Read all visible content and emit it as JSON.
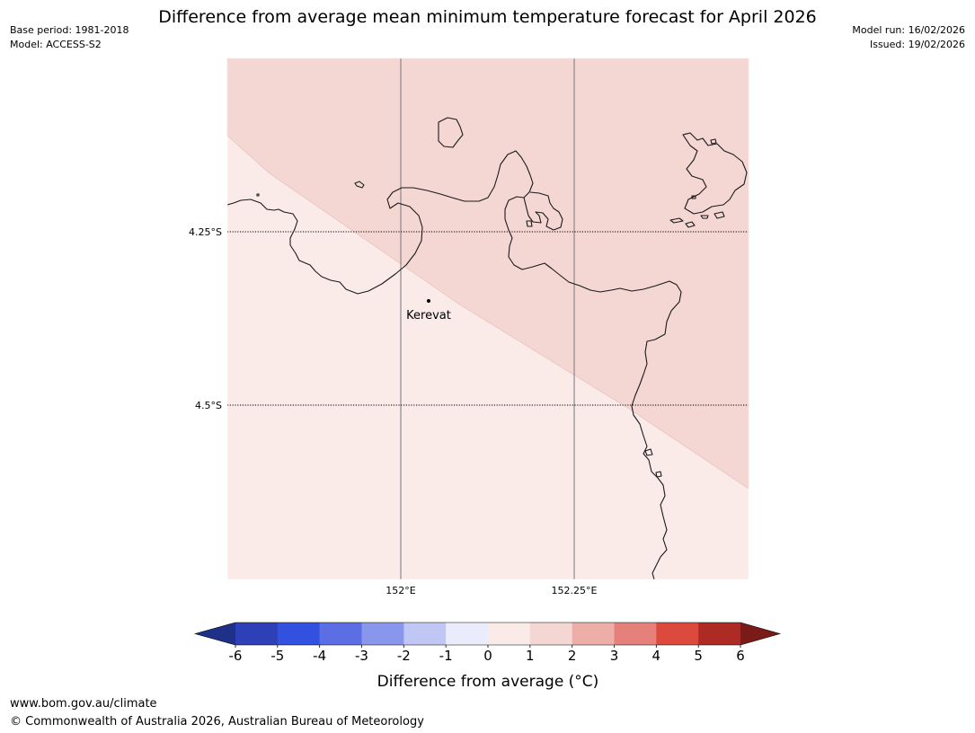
{
  "header": {
    "title": "Difference from average mean minimum temperature forecast for April 2026",
    "base_period": "Base period: 1981-2018",
    "model": "Model: ACCESS-S2",
    "model_run": "Model run: 16/02/2026",
    "issued": "Issued: 19/02/2026"
  },
  "map": {
    "latitude_labels": [
      "4.25°S",
      "4.5°S"
    ],
    "longitude_labels": [
      "152°E",
      "152.25°E"
    ],
    "place": "Kerevat",
    "colors": {
      "anomaly_0_to_1": "#faeae8",
      "anomaly_1_to_2": "#f4d6d3",
      "coastline": "#1a1a1a",
      "meridian": "#777777"
    }
  },
  "colorbar": {
    "ticks": [
      "-6",
      "-5",
      "-4",
      "-3",
      "-2",
      "-1",
      "0",
      "1",
      "2",
      "3",
      "4",
      "5",
      "6"
    ],
    "label": "Difference from average (°C)",
    "colors": [
      "#1f3088",
      "#2e40b8",
      "#3351e0",
      "#5b6ee3",
      "#8897ec",
      "#c0c7f4",
      "#eaecfc",
      "#faeae8",
      "#f4d6d3",
      "#eeaea8",
      "#e5807a",
      "#db4a3d",
      "#ad2b24",
      "#7a1b18"
    ]
  },
  "footer": {
    "url": "www.bom.gov.au/climate",
    "copyright": "© Commonwealth of Australia 2026, Australian Bureau of Meteorology"
  }
}
